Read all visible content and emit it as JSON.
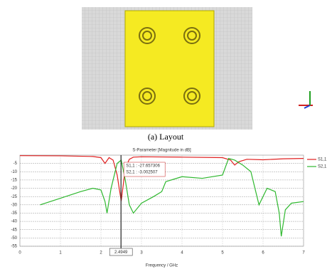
{
  "caption": "(a) Layout",
  "chart_data": {
    "type": "line",
    "title": "S-Parameter [Magnitude in dB]",
    "x_label": "Frequency / GHz",
    "xlim": [
      0,
      7
    ],
    "xticks": [
      0,
      1,
      2,
      3,
      4,
      5,
      6,
      7
    ],
    "ylim": [
      -55,
      0
    ],
    "yticks": [
      -5,
      -10,
      -15,
      -20,
      -25,
      -30,
      -35,
      -40,
      -45,
      -50,
      -55
    ],
    "grid": true,
    "legend": "right",
    "marker_x": 2.4949,
    "annotations": [
      "S1,1 : -27.657306",
      "S2,1 : -3.002507"
    ],
    "series": [
      {
        "name": "S1,1",
        "color": "#e02020",
        "x": [
          0,
          1.0,
          1.8,
          2.0,
          2.1,
          2.2,
          2.3,
          2.4,
          2.45,
          2.5,
          2.55,
          2.6,
          2.7,
          2.8,
          3.0,
          4.0,
          5.0,
          5.2,
          5.3,
          5.4,
          5.6,
          6.0,
          6.5,
          7.0
        ],
        "values": [
          -0.3,
          -0.4,
          -0.8,
          -1.5,
          -5,
          -1.5,
          -3,
          -12,
          -20,
          -27.7,
          -18,
          -8,
          -2.5,
          -1.2,
          -1,
          -1.2,
          -1.5,
          -3,
          -6,
          -4,
          -2.5,
          -2.8,
          -2.2,
          -2
        ]
      },
      {
        "name": "S2,1",
        "color": "#2fb82f",
        "x": [
          0.5,
          1.0,
          1.5,
          1.8,
          2.0,
          2.1,
          2.15,
          2.25,
          2.4,
          2.5,
          2.6,
          2.7,
          2.8,
          3.0,
          3.3,
          3.5,
          3.6,
          4.0,
          4.5,
          5.0,
          5.15,
          5.3,
          5.5,
          5.7,
          5.9,
          6.1,
          6.3,
          6.4,
          6.45,
          6.55,
          6.7,
          7.0
        ],
        "values": [
          -30,
          -26,
          -22,
          -20,
          -21,
          -28,
          -35,
          -20,
          -5,
          -3,
          -15,
          -30,
          -35,
          -29,
          -25,
          -22,
          -16,
          -13,
          -14,
          -12,
          -2,
          -3,
          -6,
          -10,
          -30,
          -20,
          -22,
          -35,
          -49,
          -33,
          -29,
          -28
        ]
      }
    ]
  }
}
